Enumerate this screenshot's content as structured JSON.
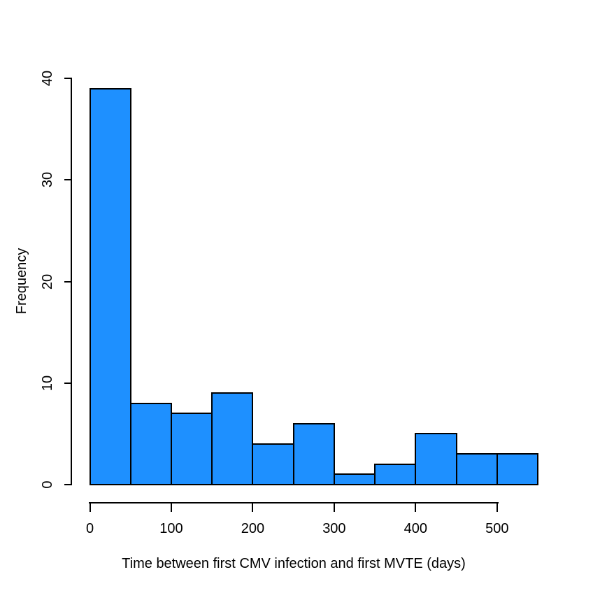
{
  "figure": {
    "background": "#FFFFFF"
  },
  "chart_data": {
    "type": "bar",
    "subtype": "histogram",
    "title": "",
    "xlabel": "Time between first CMV infection and first MVTE (days)",
    "ylabel": "Frequency",
    "bin_width": 50,
    "bin_edges": [
      0,
      50,
      100,
      150,
      200,
      250,
      300,
      350,
      400,
      450,
      500,
      550
    ],
    "categories": [
      "0-50",
      "50-100",
      "100-150",
      "150-200",
      "200-250",
      "250-300",
      "300-350",
      "350-400",
      "400-450",
      "450-500",
      "500-550"
    ],
    "values": [
      39,
      8,
      7,
      9,
      4,
      6,
      1,
      2,
      5,
      3,
      3
    ],
    "x_ticks": [
      0,
      100,
      200,
      300,
      400,
      500
    ],
    "y_ticks": [
      0,
      10,
      20,
      30,
      40
    ],
    "xlim": [
      0,
      550
    ],
    "ylim": [
      0,
      40
    ],
    "bar_fill": "#1E90FF",
    "bar_stroke": "#000000",
    "axis_color": "#000000",
    "grid": false,
    "legend_position": "none"
  }
}
